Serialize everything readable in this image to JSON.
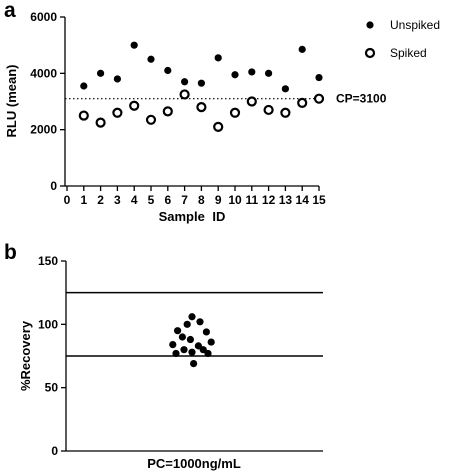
{
  "chart_data": [
    {
      "panel": "a",
      "type": "scatter",
      "xlabel": "Sample ID",
      "ylabel": "RLU (mean)",
      "xlim": [
        0,
        15
      ],
      "ylim": [
        0,
        6000
      ],
      "xticks": [
        "0",
        "1",
        "2",
        "3",
        "4",
        "5",
        "6",
        "7",
        "8",
        "9",
        "10",
        "11",
        "12",
        "13",
        "14",
        "15"
      ],
      "yticks": [
        "0",
        "2000",
        "4000",
        "6000"
      ],
      "x": [
        1,
        2,
        3,
        4,
        5,
        6,
        7,
        8,
        9,
        10,
        11,
        12,
        13,
        14,
        15
      ],
      "series": [
        {
          "name": "Unspiked",
          "marker": "filled-circle",
          "values": [
            3550,
            4000,
            3800,
            5000,
            4500,
            4100,
            3700,
            3650,
            4550,
            3950,
            4050,
            4000,
            3450,
            4850,
            3850
          ]
        },
        {
          "name": "Spiked",
          "marker": "open-circle",
          "values": [
            2500,
            2250,
            2600,
            2850,
            2350,
            2650,
            3250,
            2800,
            2100,
            2600,
            3000,
            2700,
            2600,
            2950,
            3100
          ]
        }
      ],
      "reference_line": {
        "value": 3100,
        "style": "dotted",
        "label": "CP=3100"
      },
      "legend_position": "top-right",
      "grid": false
    },
    {
      "panel": "b",
      "type": "scatter",
      "xlabel": "PC=1000ng/mL",
      "ylabel": "%Recovery",
      "ylim": [
        0,
        150
      ],
      "yticks": [
        "0",
        "50",
        "100",
        "150"
      ],
      "reference_lines": [
        125,
        75
      ],
      "points": [
        {
          "x": -0.6,
          "y": 84
        },
        {
          "x": -0.45,
          "y": 95
        },
        {
          "x": -0.3,
          "y": 90
        },
        {
          "x": -0.15,
          "y": 100
        },
        {
          "x": 0.0,
          "y": 106
        },
        {
          "x": 0.25,
          "y": 102
        },
        {
          "x": 0.45,
          "y": 94
        },
        {
          "x": 0.6,
          "y": 86
        },
        {
          "x": -0.5,
          "y": 77
        },
        {
          "x": -0.25,
          "y": 80
        },
        {
          "x": 0.0,
          "y": 78
        },
        {
          "x": 0.2,
          "y": 83
        },
        {
          "x": 0.35,
          "y": 80
        },
        {
          "x": 0.5,
          "y": 77
        },
        {
          "x": 0.05,
          "y": 69
        },
        {
          "x": -0.05,
          "y": 88
        }
      ],
      "grid": false
    }
  ]
}
